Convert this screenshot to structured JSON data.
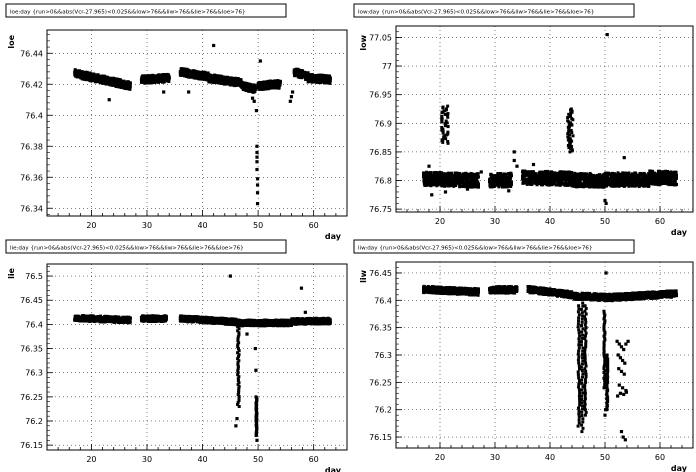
{
  "chart_data": [
    {
      "type": "scatter",
      "title": "loe:day {run>0&&abs(Vcr-27.965)<0.025&&low>76&&liw>76&&lie>76&&loe>76}",
      "xlabel": "day",
      "ylabel": "loe",
      "xlim": [
        12,
        66
      ],
      "ylim": [
        76.335,
        76.455
      ],
      "grid": true,
      "xticks": [
        20,
        30,
        40,
        50,
        60
      ],
      "yticks": [
        76.34,
        76.36,
        76.38,
        76.4,
        76.42,
        76.44
      ],
      "ytick_labels": [
        "76.34",
        "76.36",
        "76.38",
        "76.4",
        "76.42",
        "76.44"
      ],
      "bands": [
        {
          "x": [
            17,
            27
          ],
          "y": [
            76.427,
            76.419
          ]
        },
        {
          "x": [
            29,
            34
          ],
          "y": [
            76.423,
            76.424
          ]
        },
        {
          "x": [
            36,
            41
          ],
          "y": [
            76.428,
            76.425
          ]
        },
        {
          "x": [
            41,
            47
          ],
          "y": [
            76.424,
            76.421
          ]
        },
        {
          "x": [
            47,
            49.5
          ],
          "y": [
            76.419,
            76.417
          ]
        },
        {
          "x": [
            50,
            54
          ],
          "y": [
            76.419,
            76.42
          ]
        },
        {
          "x": [
            56.5,
            59
          ],
          "y": [
            76.428,
            76.425
          ]
        },
        {
          "x": [
            59,
            63
          ],
          "y": [
            76.424,
            76.423
          ]
        }
      ],
      "band_halfwidth": 0.0025,
      "points": [
        [
          23.2,
          76.41
        ],
        [
          33.0,
          76.415
        ],
        [
          37.5,
          76.415
        ],
        [
          42.0,
          76.445
        ],
        [
          49.0,
          76.411
        ],
        [
          49.3,
          76.409
        ],
        [
          49.7,
          76.403
        ],
        [
          49.8,
          76.38
        ],
        [
          49.8,
          76.376
        ],
        [
          49.8,
          76.373
        ],
        [
          49.8,
          76.37
        ],
        [
          49.8,
          76.365
        ],
        [
          49.9,
          76.359
        ],
        [
          49.9,
          76.355
        ],
        [
          49.9,
          76.35
        ],
        [
          49.9,
          76.343
        ],
        [
          50.4,
          76.435
        ],
        [
          55.8,
          76.409
        ],
        [
          56.0,
          76.412
        ],
        [
          56.2,
          76.415
        ]
      ]
    },
    {
      "type": "scatter",
      "title": "low:day {run>0&&abs(Vcr-27.965)<0.025&&low>76&&liw>76&&lie>76&&loe>76}",
      "xlabel": "day",
      "ylabel": "low",
      "xlim": [
        12,
        66
      ],
      "ylim": [
        76.745,
        77.07
      ],
      "grid": true,
      "xticks": [
        20,
        30,
        40,
        50,
        60
      ],
      "yticks": [
        76.75,
        76.8,
        76.85,
        76.9,
        76.95,
        77,
        77.05
      ],
      "ytick_labels": [
        "76.75",
        "76.8",
        "76.85",
        "76.9",
        "76.95",
        "77",
        "77.05"
      ],
      "bands": [
        {
          "x": [
            17,
            27
          ],
          "y": [
            76.803,
            76.8
          ]
        },
        {
          "x": [
            29,
            33
          ],
          "y": [
            76.8,
            76.801
          ]
        },
        {
          "x": [
            35,
            44
          ],
          "y": [
            76.805,
            76.803
          ]
        },
        {
          "x": [
            44,
            50
          ],
          "y": [
            76.801,
            76.8
          ]
        },
        {
          "x": [
            50,
            58
          ],
          "y": [
            76.802,
            76.801
          ]
        },
        {
          "x": [
            58,
            63
          ],
          "y": [
            76.805,
            76.804
          ]
        }
      ],
      "band_halfwidth": 0.012,
      "spikes": [
        {
          "x": [
            20.3,
            21.5
          ],
          "y": [
            76.865,
            76.93
          ]
        },
        {
          "x": [
            43.2,
            44.2
          ],
          "y": [
            76.85,
            76.925
          ]
        }
      ],
      "points": [
        [
          18.0,
          76.825
        ],
        [
          18.5,
          76.775
        ],
        [
          21.0,
          76.78
        ],
        [
          25.0,
          76.785
        ],
        [
          32.5,
          76.782
        ],
        [
          33.5,
          76.85
        ],
        [
          33.5,
          76.835
        ],
        [
          34.0,
          76.825
        ],
        [
          37.0,
          76.828
        ],
        [
          50.0,
          76.765
        ],
        [
          50.2,
          76.76
        ],
        [
          50.4,
          77.055
        ],
        [
          53.5,
          76.84
        ],
        [
          27.5,
          76.815
        ]
      ]
    },
    {
      "type": "scatter",
      "title": "lie:day {run>0&&abs(Vcr-27.965)<0.025&&low>76&&liw>76&&lie>76&&loe>76}",
      "xlabel": "day",
      "ylabel": "lie",
      "xlim": [
        12,
        66
      ],
      "ylim": [
        76.14,
        76.525
      ],
      "grid": true,
      "xticks": [
        20,
        30,
        40,
        50,
        60
      ],
      "yticks": [
        76.15,
        76.2,
        76.25,
        76.3,
        76.35,
        76.4,
        76.45,
        76.5
      ],
      "ytick_labels": [
        "76.15",
        "76.2",
        "76.25",
        "76.3",
        "76.35",
        "76.4",
        "76.45",
        "76.5"
      ],
      "bands": [
        {
          "x": [
            17,
            27
          ],
          "y": [
            76.413,
            76.409
          ]
        },
        {
          "x": [
            29,
            33.5
          ],
          "y": [
            76.412,
            76.412
          ]
        },
        {
          "x": [
            36,
            46
          ],
          "y": [
            76.412,
            76.405
          ]
        },
        {
          "x": [
            46,
            56
          ],
          "y": [
            76.403,
            76.403
          ]
        },
        {
          "x": [
            56,
            63
          ],
          "y": [
            76.406,
            76.407
          ]
        }
      ],
      "band_halfwidth": 0.006,
      "spikes": [
        {
          "x": [
            46.3,
            46.6
          ],
          "y": [
            76.23,
            76.395
          ]
        },
        {
          "x": [
            49.6,
            49.8
          ],
          "y": [
            76.17,
            76.25
          ]
        }
      ],
      "points": [
        [
          45.0,
          76.5
        ],
        [
          46.0,
          76.19
        ],
        [
          46.2,
          76.205
        ],
        [
          48.0,
          76.38
        ],
        [
          49.5,
          76.35
        ],
        [
          49.6,
          76.305
        ],
        [
          49.8,
          76.16
        ],
        [
          49.7,
          76.175
        ],
        [
          57.8,
          76.475
        ],
        [
          58.5,
          76.425
        ]
      ]
    },
    {
      "type": "scatter",
      "title": "liw:day {run>0&&abs(Vcr-27.965)<0.025&&low>76&&liw>76&&lie>76&&loe>76}",
      "xlabel": "day",
      "ylabel": "liw",
      "xlim": [
        12,
        66
      ],
      "ylim": [
        76.13,
        76.47
      ],
      "grid": true,
      "xticks": [
        20,
        30,
        40,
        50,
        60
      ],
      "yticks": [
        76.15,
        76.2,
        76.25,
        76.3,
        76.35,
        76.4,
        76.45
      ],
      "ytick_labels": [
        "76.15",
        "76.2",
        "76.25",
        "76.3",
        "76.35",
        "76.4",
        "76.45"
      ],
      "bands": [
        {
          "x": [
            17,
            27
          ],
          "y": [
            76.42,
            76.415
          ]
        },
        {
          "x": [
            29,
            34
          ],
          "y": [
            76.419,
            76.419
          ]
        },
        {
          "x": [
            36,
            44
          ],
          "y": [
            76.42,
            76.41
          ]
        },
        {
          "x": [
            44,
            51
          ],
          "y": [
            76.408,
            76.405
          ]
        },
        {
          "x": [
            51,
            63
          ],
          "y": [
            76.405,
            76.412
          ]
        }
      ],
      "band_halfwidth": 0.006,
      "spikes": [
        {
          "x": [
            45.1,
            45.4
          ],
          "y": [
            76.17,
            76.39
          ]
        },
        {
          "x": [
            45.7,
            46.0
          ],
          "y": [
            76.16,
            76.395
          ]
        },
        {
          "x": [
            46.3,
            46.6
          ],
          "y": [
            76.19,
            76.39
          ]
        },
        {
          "x": [
            49.8,
            50.0
          ],
          "y": [
            76.24,
            76.38
          ]
        },
        {
          "x": [
            50.3,
            50.5
          ],
          "y": [
            76.2,
            76.3
          ]
        }
      ],
      "points": [
        [
          50.2,
          76.45
        ],
        [
          50.0,
          76.19
        ],
        [
          50.1,
          76.2
        ],
        [
          52.2,
          76.325
        ],
        [
          52.6,
          76.32
        ],
        [
          53.0,
          76.315
        ],
        [
          53.4,
          76.31
        ],
        [
          53.8,
          76.32
        ],
        [
          54.2,
          76.325
        ],
        [
          52.4,
          76.3
        ],
        [
          52.8,
          76.295
        ],
        [
          53.2,
          76.29
        ],
        [
          53.6,
          76.285
        ],
        [
          52.5,
          76.275
        ],
        [
          53.0,
          76.27
        ],
        [
          53.5,
          76.265
        ],
        [
          52.6,
          76.245
        ],
        [
          53.2,
          76.24
        ],
        [
          53.8,
          76.235
        ],
        [
          52.3,
          76.225
        ],
        [
          52.8,
          76.23
        ],
        [
          53.4,
          76.228
        ],
        [
          53.9,
          76.232
        ],
        [
          53.0,
          76.16
        ],
        [
          53.3,
          76.15
        ],
        [
          53.7,
          76.145
        ]
      ]
    }
  ]
}
